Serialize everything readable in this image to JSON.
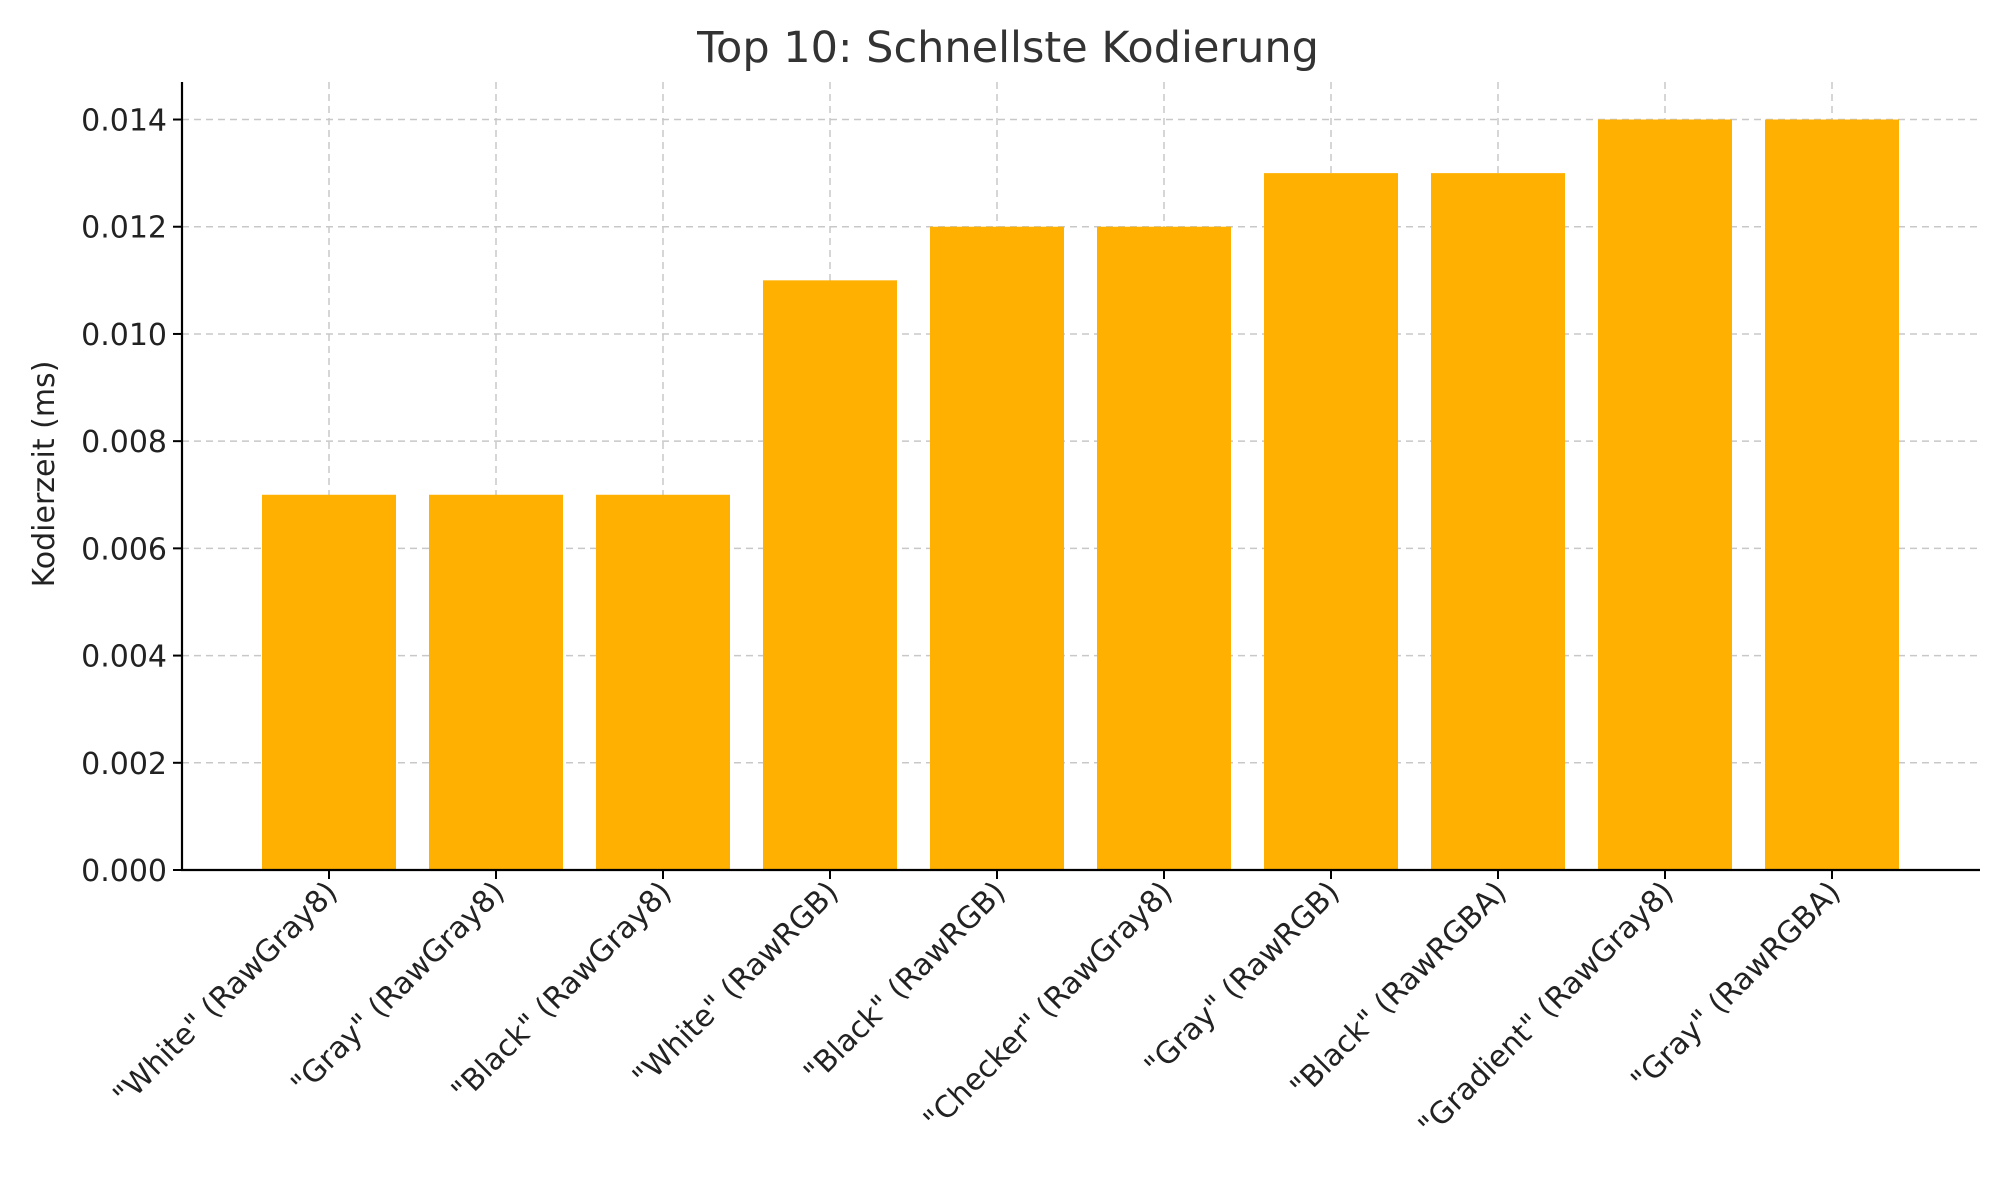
{
  "chart_data": {
    "type": "bar",
    "title": "Top 10: Schnellste Kodierung",
    "xlabel": "",
    "ylabel": "Kodierzeit (ms)",
    "categories": [
      "\"White\" (RawGray8)",
      "\"Gray\" (RawGray8)",
      "\"Black\" (RawGray8)",
      "\"White\" (RawRGB)",
      "\"Black\" (RawRGB)",
      "\"Checker\" (RawGray8)",
      "\"Gray\" (RawRGB)",
      "\"Black\" (RawRGBA)",
      "\"Gradient\" (RawGray8)",
      "\"Gray\" (RawRGBA)"
    ],
    "values": [
      0.007,
      0.007,
      0.007,
      0.011,
      0.012,
      0.012,
      0.013,
      0.013,
      0.014,
      0.014
    ],
    "ylim": [
      0,
      0.0147
    ],
    "yticks": [
      "0.000",
      "0.002",
      "0.004",
      "0.006",
      "0.008",
      "0.010",
      "0.012",
      "0.014"
    ],
    "grid": true,
    "bar_color": "#FFB000"
  }
}
